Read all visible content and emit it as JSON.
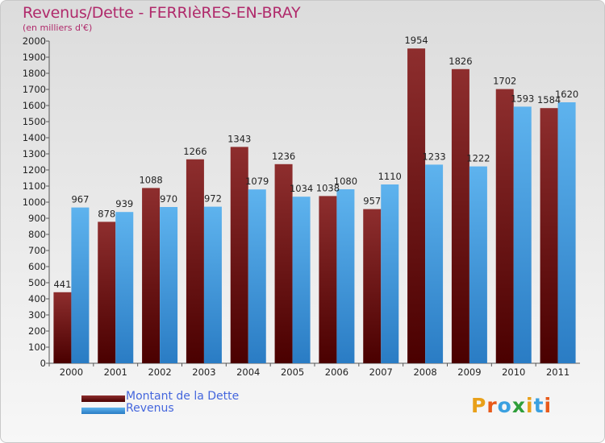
{
  "chart_data": {
    "type": "bar",
    "title": "Revenus/Dette - FERRIèRES-EN-BRAY",
    "subtitle": "(en milliers d'€)",
    "categories": [
      "2000",
      "2001",
      "2002",
      "2003",
      "2004",
      "2005",
      "2006",
      "2007",
      "2008",
      "2009",
      "2010",
      "2011"
    ],
    "series": [
      {
        "name": "Montant de la Dette",
        "color": "#7b1c1c",
        "values": [
          441,
          878,
          1088,
          1266,
          1343,
          1236,
          1038,
          957,
          1954,
          1826,
          1702,
          1584
        ]
      },
      {
        "name": "Revenus",
        "color": "#4ba3e8",
        "values": [
          967,
          939,
          970,
          972,
          1079,
          1034,
          1080,
          1110,
          1233,
          1222,
          1593,
          1620
        ]
      }
    ],
    "ylim": [
      0,
      2000
    ],
    "ytick_step": 100,
    "grid": false,
    "legend_position": "bottom-left"
  },
  "logo_text": "Proxiti"
}
